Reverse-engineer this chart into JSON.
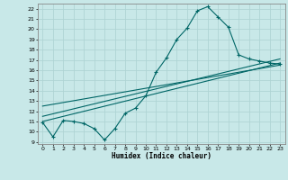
{
  "xlabel": "Humidex (Indice chaleur)",
  "ylabel": "",
  "bg_color": "#c8e8e8",
  "line_color": "#006666",
  "grid_color": "#afd4d4",
  "xlim": [
    -0.5,
    23.5
  ],
  "ylim": [
    8.8,
    22.5
  ],
  "yticks": [
    9,
    10,
    11,
    12,
    13,
    14,
    15,
    16,
    17,
    18,
    19,
    20,
    21,
    22
  ],
  "xticks": [
    0,
    1,
    2,
    3,
    4,
    5,
    6,
    7,
    8,
    9,
    10,
    11,
    12,
    13,
    14,
    15,
    16,
    17,
    18,
    19,
    20,
    21,
    22,
    23
  ],
  "curve1_x": [
    0,
    1,
    2,
    3,
    4,
    5,
    6,
    7,
    8,
    9,
    10,
    11,
    12,
    13,
    14,
    15,
    16,
    17,
    18,
    19,
    20,
    21,
    22,
    23
  ],
  "curve1_y": [
    10.9,
    9.5,
    11.1,
    11.0,
    10.8,
    10.3,
    9.2,
    10.3,
    11.8,
    12.3,
    13.5,
    15.8,
    17.2,
    19.0,
    20.1,
    21.8,
    22.2,
    21.2,
    20.2,
    17.5,
    17.1,
    16.9,
    16.7,
    16.6
  ],
  "line1_x": [
    0,
    23
  ],
  "line1_y": [
    11.0,
    16.7
  ],
  "line2_x": [
    0,
    23
  ],
  "line2_y": [
    11.5,
    17.1
  ],
  "line3_x": [
    0,
    23
  ],
  "line3_y": [
    12.5,
    16.5
  ]
}
